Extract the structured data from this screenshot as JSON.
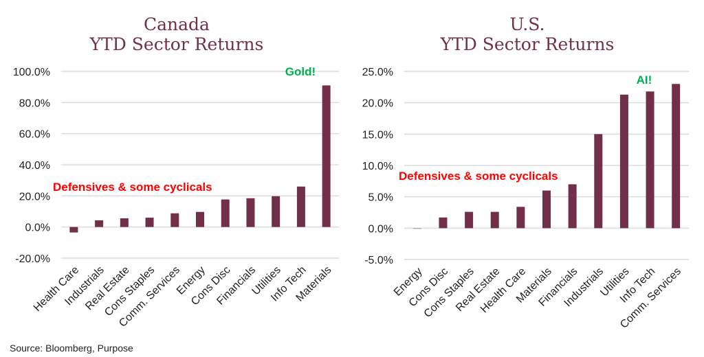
{
  "source": "Source: Bloomberg, Purpose",
  "chart_data": [
    {
      "type": "bar",
      "title": "Canada\nYTD Sector Returns",
      "title_lines": [
        "Canada",
        "YTD Sector Returns"
      ],
      "xlabel": "",
      "ylabel": "",
      "ylim": [
        -20,
        100
      ],
      "yticks": [
        100,
        80,
        60,
        40,
        20,
        0,
        -20
      ],
      "ytick_labels": [
        "100.0%",
        "80.0%",
        "60.0%",
        "40.0%",
        "20.0%",
        "0.0%",
        "-20.0%"
      ],
      "grid": true,
      "categories": [
        "Health Care",
        "Industrials",
        "Real Estate",
        "Cons Staples",
        "Comm. Services",
        "Energy",
        "Cons Disc",
        "Financials",
        "Utilities",
        "Info Tech",
        "Materials"
      ],
      "values": [
        -3.5,
        4.3,
        5.6,
        6.0,
        8.8,
        9.7,
        17.7,
        18.5,
        19.8,
        26.0,
        91.0
      ],
      "bar_color": "#722f4a",
      "annotations": [
        {
          "text": "Defensives & some cyclicals",
          "color": "#ff0000",
          "near": "left, just above 20%"
        },
        {
          "text": "Gold!",
          "color": "#00b050",
          "near": "above Materials bar"
        }
      ]
    },
    {
      "type": "bar",
      "title": "U.S.\nYTD Sector Returns",
      "title_lines": [
        "U.S.",
        "YTD Sector Returns"
      ],
      "xlabel": "",
      "ylabel": "",
      "ylim": [
        -5,
        25
      ],
      "yticks": [
        25,
        20,
        15,
        10,
        5,
        0,
        -5
      ],
      "ytick_labels": [
        "25.0%",
        "20.0%",
        "15.0%",
        "10.0%",
        "5.0%",
        "0.0%",
        "-5.0%"
      ],
      "grid": true,
      "categories": [
        "Energy",
        "Cons Disc",
        "Cons Staples",
        "Real Estate",
        "Health Care",
        "Materials",
        "Financials",
        "Industrials",
        "Utilities",
        "Info Tech",
        "Comm. Services"
      ],
      "values": [
        -0.1,
        1.7,
        2.6,
        2.6,
        3.4,
        6.0,
        7.0,
        15.0,
        21.3,
        21.8,
        23.0
      ],
      "bar_color": "#722f4a",
      "annotations": [
        {
          "text": "Defensives & some cyclicals",
          "color": "#ff0000",
          "near": "left, just above 5%"
        },
        {
          "text": "AI!",
          "color": "#00b050",
          "near": "above Info Tech bar"
        }
      ]
    }
  ]
}
